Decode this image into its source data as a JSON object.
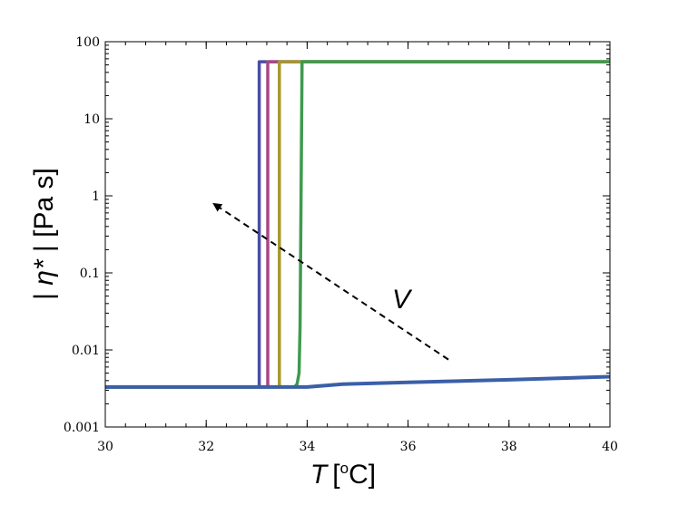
{
  "chart_data": {
    "type": "line",
    "xlabel_var": "T",
    "xlabel_unit_open": "[",
    "xlabel_unit_sup": "o",
    "xlabel_unit_close": "C]",
    "ylabel_prefix": "| ",
    "ylabel_var": "η*",
    "ylabel_suffix": " | [Pa s]",
    "annotation": "V",
    "annotation_arrow": {
      "from": [
        36.8,
        0.0075
      ],
      "to": [
        32.2,
        0.75
      ]
    },
    "xlim": [
      30,
      40
    ],
    "ylim": [
      0.001,
      100
    ],
    "yscale": "log",
    "x_ticks": [
      "30",
      "32",
      "34",
      "36",
      "38",
      "40"
    ],
    "y_ticks": [
      "0.001",
      "0.01",
      "0.1",
      "1",
      "10",
      "100"
    ],
    "grid": false,
    "series": [
      {
        "color": "#4a4ea6",
        "x": [
          30,
          33.05,
          33.05,
          40
        ],
        "y": [
          0.0033,
          0.0033,
          55,
          55
        ]
      },
      {
        "color": "#a64a82",
        "x": [
          30,
          33.22,
          33.22,
          40
        ],
        "y": [
          0.0033,
          0.0033,
          55,
          55
        ]
      },
      {
        "color": "#a6982e",
        "x": [
          30,
          33.45,
          33.45,
          40
        ],
        "y": [
          0.0033,
          0.0033,
          55,
          55
        ]
      },
      {
        "color": "#3f9a4e",
        "x": [
          30,
          33.75,
          33.8,
          33.84,
          33.86,
          33.88,
          33.9,
          40
        ],
        "y": [
          0.0033,
          0.0033,
          0.0036,
          0.005,
          0.02,
          1,
          55,
          55
        ]
      },
      {
        "color": "#3b5fa8",
        "x": [
          30,
          34.0,
          34.7,
          36,
          38,
          40
        ],
        "y": [
          0.0033,
          0.0033,
          0.0036,
          0.0038,
          0.0041,
          0.0045
        ]
      }
    ]
  }
}
